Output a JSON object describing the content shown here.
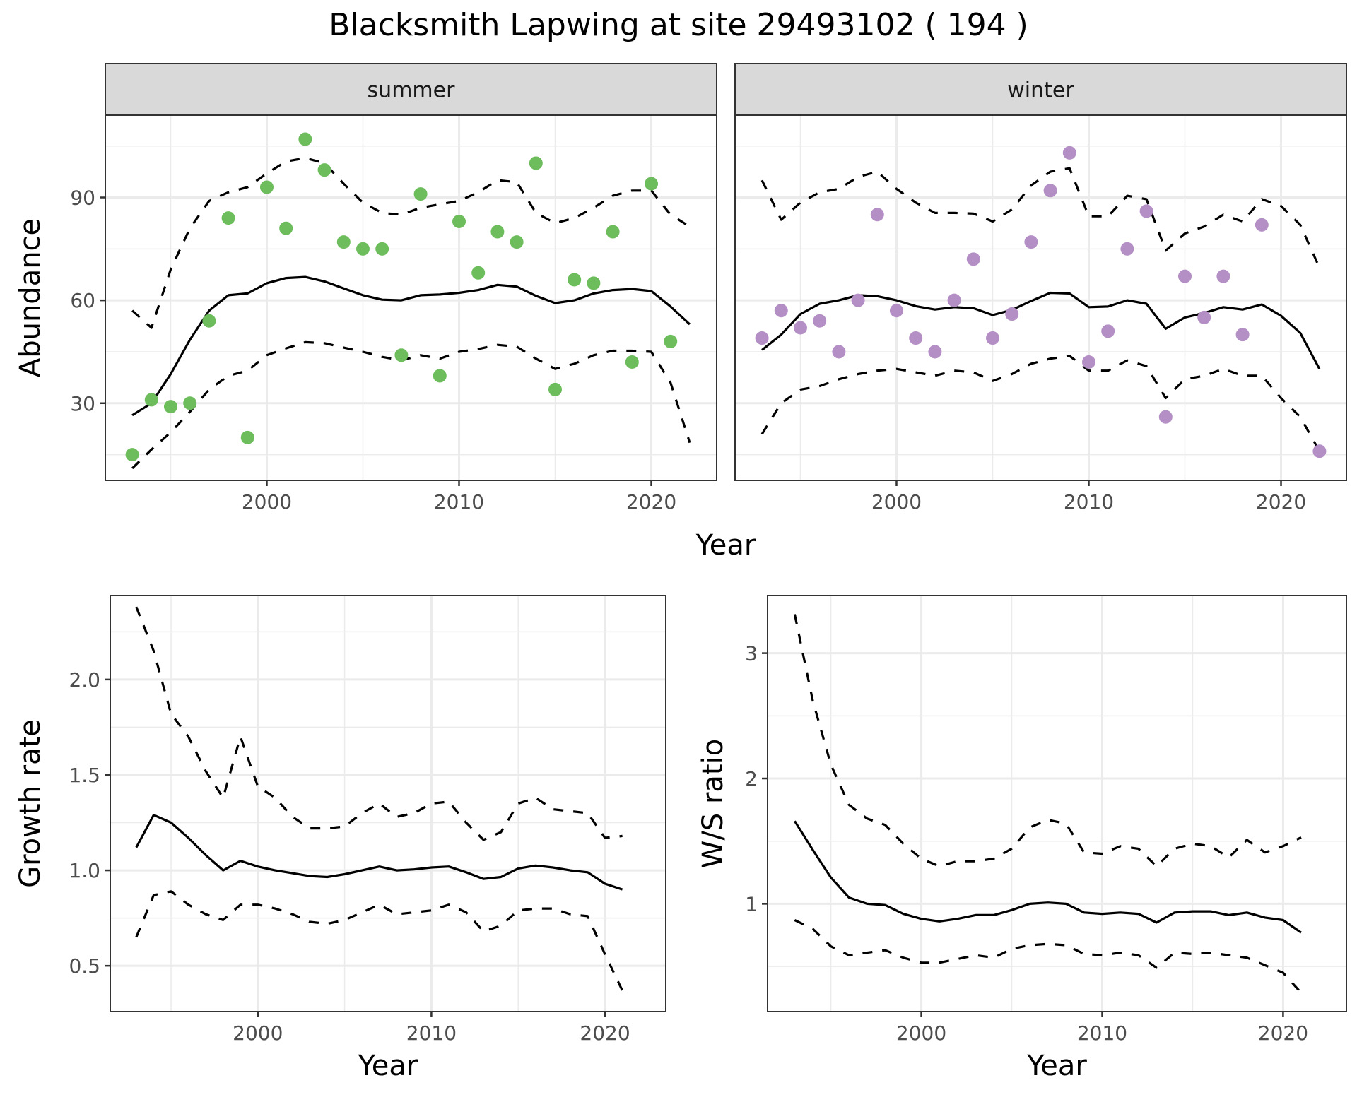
{
  "title": "Blacksmith Lapwing at site 29493102 ( 194 )",
  "colors": {
    "summer_points": "#6dbd5c",
    "winter_points": "#b48fc5",
    "lines": "#000000",
    "strip_fill": "#d9d9d9",
    "grid": "#ebebeb",
    "panel_border": "#333333"
  },
  "chart_data": [
    {
      "type": "scatter",
      "panel": "summer",
      "strip_label": "summer",
      "xlabel": "Year",
      "ylabel": "Abundance",
      "xlim": [
        1991.6,
        2023.4
      ],
      "ylim": [
        7.5,
        114
      ],
      "x_ticks": [
        2000,
        2010,
        2020
      ],
      "x_tick_labels": [
        "2000",
        "2010",
        "2020"
      ],
      "y_ticks": [
        30,
        60,
        90
      ],
      "y_tick_labels": [
        "30",
        "60",
        "90"
      ],
      "grid": true,
      "points": {
        "x": [
          1993,
          1994,
          1995,
          1996,
          1997,
          1998,
          1999,
          2000,
          2001,
          2002,
          2003,
          2004,
          2005,
          2006,
          2007,
          2008,
          2009,
          2010,
          2011,
          2012,
          2013,
          2014,
          2015,
          2016,
          2017,
          2018,
          2019,
          2020,
          2021
        ],
        "y": [
          15,
          31,
          29,
          30,
          54,
          84,
          20,
          93,
          81,
          107,
          98,
          77,
          75,
          75,
          44,
          91,
          38,
          83,
          68,
          80,
          77,
          100,
          34,
          66,
          65,
          80,
          42,
          94,
          48
        ]
      },
      "series": [
        {
          "name": "mean",
          "style": "solid",
          "x": [
            1993,
            1994,
            1995,
            1996,
            1997,
            1998,
            1999,
            2000,
            2001,
            2002,
            2003,
            2004,
            2005,
            2006,
            2007,
            2008,
            2009,
            2010,
            2011,
            2012,
            2013,
            2014,
            2015,
            2016,
            2017,
            2018,
            2019,
            2020,
            2021,
            2022
          ],
          "y": [
            26.5,
            30,
            38.5,
            48.5,
            57,
            61.5,
            62,
            65,
            66.5,
            66.8,
            65.5,
            63.5,
            61.5,
            60.2,
            60,
            61.5,
            61.7,
            62.2,
            63,
            64.5,
            64,
            61.3,
            59.2,
            60,
            62,
            63,
            63.3,
            62.7,
            58.2,
            53
          ]
        },
        {
          "name": "upper",
          "style": "dashed",
          "x": [
            1993,
            1994,
            1995,
            1996,
            1997,
            1998,
            1999,
            2000,
            2001,
            2002,
            2003,
            2004,
            2005,
            2006,
            2007,
            2008,
            2009,
            2010,
            2011,
            2012,
            2013,
            2014,
            2015,
            2016,
            2017,
            2018,
            2019,
            2020,
            2021,
            2022
          ],
          "y": [
            57,
            52,
            69,
            81,
            89,
            91.5,
            93,
            97,
            100.5,
            101.5,
            100,
            94,
            88.5,
            85.5,
            85,
            87,
            88,
            89,
            91.5,
            95,
            94.5,
            85.5,
            82.5,
            84,
            87,
            90.5,
            92,
            92,
            85,
            81.5
          ]
        },
        {
          "name": "lower",
          "style": "dashed",
          "x": [
            1993,
            1994,
            1995,
            1996,
            1997,
            1998,
            1999,
            2000,
            2001,
            2002,
            2003,
            2004,
            2005,
            2006,
            2007,
            2008,
            2009,
            2010,
            2011,
            2012,
            2013,
            2014,
            2015,
            2016,
            2017,
            2018,
            2019,
            2020,
            2021,
            2022
          ],
          "y": [
            11,
            16.5,
            21.5,
            27.5,
            34,
            38,
            39.5,
            44,
            46,
            47.8,
            47.5,
            46.2,
            45,
            43.5,
            42.5,
            44,
            43,
            45,
            45.8,
            47,
            46.5,
            43,
            40,
            41.5,
            44,
            45.3,
            45.3,
            45,
            36,
            18.5
          ]
        }
      ]
    },
    {
      "type": "scatter",
      "panel": "winter",
      "strip_label": "winter",
      "xlabel": "Year",
      "ylabel": "Abundance",
      "xlim": [
        1991.6,
        2023.4
      ],
      "ylim": [
        7.5,
        114
      ],
      "x_ticks": [
        2000,
        2010,
        2020
      ],
      "x_tick_labels": [
        "2000",
        "2010",
        "2020"
      ],
      "y_ticks": [
        30,
        60,
        90
      ],
      "grid": true,
      "points": {
        "x": [
          1993,
          1994,
          1995,
          1996,
          1997,
          1998,
          1999,
          2000,
          2001,
          2002,
          2003,
          2004,
          2005,
          2006,
          2007,
          2008,
          2009,
          2010,
          2011,
          2012,
          2013,
          2014,
          2015,
          2016,
          2017,
          2018,
          2019,
          2022
        ],
        "y": [
          49,
          57,
          52,
          54,
          45,
          60,
          85,
          57,
          49,
          45,
          60,
          72,
          49,
          56,
          77,
          92,
          103,
          42,
          51,
          75,
          86,
          26,
          67,
          55,
          67,
          50,
          82,
          16
        ]
      },
      "series": [
        {
          "name": "mean",
          "style": "solid",
          "x": [
            1993,
            1994,
            1995,
            1996,
            1997,
            1998,
            1999,
            2000,
            2001,
            2002,
            2003,
            2004,
            2005,
            2006,
            2007,
            2008,
            2009,
            2010,
            2011,
            2012,
            2013,
            2014,
            2015,
            2016,
            2017,
            2018,
            2019,
            2020,
            2021,
            2022
          ],
          "y": [
            45.5,
            50,
            56,
            59,
            60,
            61.5,
            61.2,
            60,
            58.3,
            57.3,
            58,
            57.7,
            55.7,
            57.2,
            59.8,
            62.2,
            62,
            58,
            58.2,
            60,
            59,
            51.7,
            55,
            56.3,
            58,
            57.3,
            58.8,
            55.5,
            50.5,
            40
          ]
        },
        {
          "name": "upper",
          "style": "dashed",
          "x": [
            1993,
            1994,
            1995,
            1996,
            1997,
            1998,
            1999,
            2000,
            2001,
            2002,
            2003,
            2004,
            2005,
            2006,
            2007,
            2008,
            2009,
            2010,
            2011,
            2012,
            2013,
            2014,
            2015,
            2016,
            2017,
            2018,
            2019,
            2020,
            2021,
            2022
          ],
          "y": [
            95,
            83.5,
            88.5,
            91.5,
            92.5,
            96,
            97.5,
            92.5,
            88.5,
            85.5,
            85.5,
            85.3,
            83,
            86.5,
            93.5,
            97.5,
            98.5,
            84.5,
            84.5,
            90.5,
            89.5,
            74.5,
            79.5,
            81.5,
            85,
            83,
            89.5,
            87.5,
            82,
            69.5
          ]
        },
        {
          "name": "lower",
          "style": "dashed",
          "x": [
            1993,
            1994,
            1995,
            1996,
            1997,
            1998,
            1999,
            2000,
            2001,
            2002,
            2003,
            2004,
            2005,
            2006,
            2007,
            2008,
            2009,
            2010,
            2011,
            2012,
            2013,
            2014,
            2015,
            2016,
            2017,
            2018,
            2019,
            2020,
            2021,
            2022
          ],
          "y": [
            21,
            30,
            34,
            35,
            37,
            38.5,
            39.5,
            40,
            39,
            38,
            39.5,
            39,
            36.5,
            38.5,
            41.5,
            43,
            43.8,
            39.5,
            39.5,
            42.5,
            40.8,
            31.5,
            37,
            38,
            40,
            38,
            38,
            31.5,
            26,
            16
          ]
        }
      ]
    },
    {
      "type": "line",
      "panel": "growth",
      "xlabel": "Year",
      "ylabel": "Growth rate",
      "xlim": [
        1991.5,
        2023.5
      ],
      "ylim": [
        0.26,
        2.44
      ],
      "x_ticks": [
        2000,
        2010,
        2020
      ],
      "x_tick_labels": [
        "2000",
        "2010",
        "2020"
      ],
      "y_ticks": [
        0.5,
        1.0,
        1.5,
        2.0
      ],
      "y_tick_labels": [
        "0.5",
        "1.0",
        "1.5",
        "2.0"
      ],
      "grid": true,
      "series": [
        {
          "name": "mean",
          "style": "solid",
          "x": [
            1993,
            1994,
            1995,
            1996,
            1997,
            1998,
            1999,
            2000,
            2001,
            2002,
            2003,
            2004,
            2005,
            2006,
            2007,
            2008,
            2009,
            2010,
            2011,
            2012,
            2013,
            2014,
            2015,
            2016,
            2017,
            2018,
            2019,
            2020,
            2021
          ],
          "y": [
            1.12,
            1.29,
            1.25,
            1.17,
            1.08,
            1.0,
            1.05,
            1.02,
            1.0,
            0.985,
            0.97,
            0.965,
            0.98,
            1.0,
            1.02,
            1.0,
            1.005,
            1.015,
            1.02,
            0.99,
            0.955,
            0.965,
            1.01,
            1.025,
            1.015,
            1.0,
            0.99,
            0.93,
            0.9
          ]
        },
        {
          "name": "upper",
          "style": "dashed",
          "x": [
            1993,
            1994,
            1995,
            1996,
            1997,
            1998,
            1999,
            2000,
            2001,
            2002,
            2003,
            2004,
            2005,
            2006,
            2007,
            2008,
            2009,
            2010,
            2011,
            2012,
            2013,
            2014,
            2015,
            2016,
            2017,
            2018,
            2019,
            2020,
            2021
          ],
          "y": [
            2.38,
            2.15,
            1.82,
            1.7,
            1.52,
            1.38,
            1.7,
            1.44,
            1.38,
            1.28,
            1.22,
            1.22,
            1.23,
            1.3,
            1.35,
            1.28,
            1.3,
            1.35,
            1.36,
            1.25,
            1.16,
            1.2,
            1.35,
            1.38,
            1.32,
            1.31,
            1.3,
            1.17,
            1.18
          ]
        },
        {
          "name": "lower",
          "style": "dashed",
          "x": [
            1993,
            1994,
            1995,
            1996,
            1997,
            1998,
            1999,
            2000,
            2001,
            2002,
            2003,
            2004,
            2005,
            2006,
            2007,
            2008,
            2009,
            2010,
            2011,
            2012,
            2013,
            2014,
            2015,
            2016,
            2017,
            2018,
            2019,
            2020,
            2021
          ],
          "y": [
            0.65,
            0.87,
            0.89,
            0.82,
            0.77,
            0.74,
            0.82,
            0.82,
            0.8,
            0.77,
            0.73,
            0.72,
            0.74,
            0.78,
            0.82,
            0.77,
            0.78,
            0.79,
            0.82,
            0.78,
            0.68,
            0.71,
            0.79,
            0.8,
            0.8,
            0.77,
            0.76,
            0.56,
            0.37
          ]
        }
      ]
    },
    {
      "type": "line",
      "panel": "ratio",
      "xlabel": "Year",
      "ylabel": "W/S ratio",
      "xlim": [
        1991.5,
        2023.5
      ],
      "ylim": [
        0.14,
        3.46
      ],
      "x_ticks": [
        2000,
        2010,
        2020
      ],
      "x_tick_labels": [
        "2000",
        "2010",
        "2020"
      ],
      "y_ticks": [
        1,
        2,
        3
      ],
      "y_tick_labels": [
        "1",
        "2",
        "3"
      ],
      "grid": true,
      "series": [
        {
          "name": "mean",
          "style": "solid",
          "x": [
            1993,
            1994,
            1995,
            1996,
            1997,
            1998,
            1999,
            2000,
            2001,
            2002,
            2003,
            2004,
            2005,
            2006,
            2007,
            2008,
            2009,
            2010,
            2011,
            2012,
            2013,
            2014,
            2015,
            2016,
            2017,
            2018,
            2019,
            2020,
            2021
          ],
          "y": [
            1.66,
            1.43,
            1.21,
            1.05,
            1.0,
            0.99,
            0.92,
            0.88,
            0.86,
            0.88,
            0.91,
            0.91,
            0.95,
            1.0,
            1.01,
            1.0,
            0.93,
            0.92,
            0.93,
            0.92,
            0.85,
            0.93,
            0.94,
            0.94,
            0.91,
            0.93,
            0.89,
            0.87,
            0.77
          ]
        },
        {
          "name": "upper",
          "style": "dashed",
          "x": [
            1993,
            1994,
            1995,
            1996,
            1997,
            1998,
            1999,
            2000,
            2001,
            2002,
            2003,
            2004,
            2005,
            2006,
            2007,
            2008,
            2009,
            2010,
            2011,
            2012,
            2013,
            2014,
            2015,
            2016,
            2017,
            2018,
            2019,
            2020,
            2021
          ],
          "y": [
            3.31,
            2.62,
            2.11,
            1.79,
            1.68,
            1.63,
            1.48,
            1.36,
            1.3,
            1.34,
            1.34,
            1.36,
            1.44,
            1.61,
            1.67,
            1.64,
            1.41,
            1.4,
            1.46,
            1.44,
            1.3,
            1.44,
            1.48,
            1.46,
            1.37,
            1.51,
            1.41,
            1.46,
            1.53
          ]
        },
        {
          "name": "lower",
          "style": "dashed",
          "x": [
            1993,
            1994,
            1995,
            1996,
            1997,
            1998,
            1999,
            2000,
            2001,
            2002,
            2003,
            2004,
            2005,
            2006,
            2007,
            2008,
            2009,
            2010,
            2011,
            2012,
            2013,
            2014,
            2015,
            2016,
            2017,
            2018,
            2019,
            2020,
            2021
          ],
          "y": [
            0.87,
            0.8,
            0.66,
            0.59,
            0.61,
            0.63,
            0.57,
            0.53,
            0.53,
            0.56,
            0.59,
            0.57,
            0.64,
            0.67,
            0.68,
            0.67,
            0.6,
            0.59,
            0.61,
            0.59,
            0.49,
            0.61,
            0.6,
            0.61,
            0.59,
            0.57,
            0.51,
            0.45,
            0.29
          ]
        }
      ]
    }
  ],
  "shared": {
    "top_xlabel": "Year"
  }
}
